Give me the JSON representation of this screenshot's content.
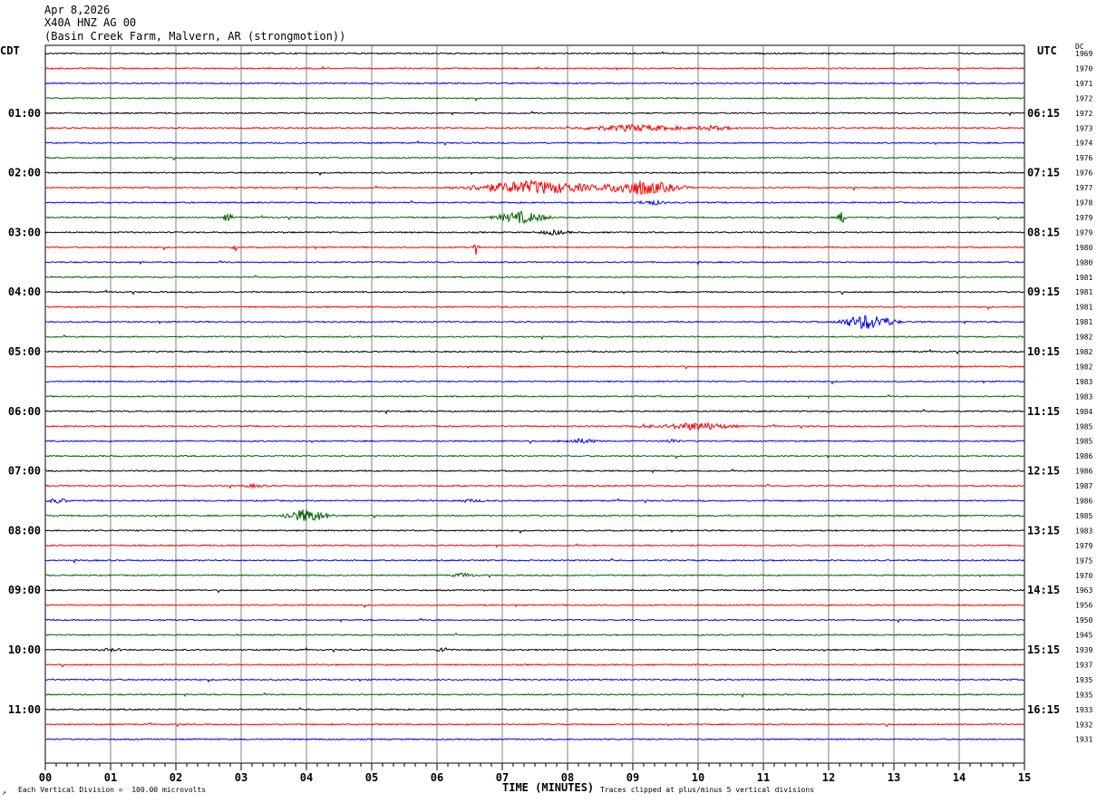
{
  "header": {
    "date": "Apr 8,2026",
    "station": "X40A HNZ AG 00",
    "location": "(Basin Creek Farm, Malvern, AR (strongmotion))"
  },
  "timezones": {
    "left": "CDT",
    "right": "UTC",
    "dc_label": "DC"
  },
  "footer": {
    "left": "Each Vertical Division =  100.00 microvolts",
    "xlabel": "TIME (MINUTES)",
    "right": "Traces clipped at plus/minus 5 vertical divisions",
    "mark": "↗"
  },
  "chart_data": {
    "type": "line",
    "x_axis": {
      "label": "TIME (MINUTES)",
      "range": [
        0,
        15
      ],
      "tick_labels": [
        "00",
        "01",
        "02",
        "03",
        "04",
        "05",
        "06",
        "07",
        "08",
        "09",
        "10",
        "11",
        "12",
        "13",
        "14",
        "15"
      ]
    },
    "colors": {
      "trace_cycle": [
        "#000000",
        "#ff0000",
        "#0000ff",
        "#006400"
      ],
      "grid": "#808080"
    },
    "hour_labels_left": [
      "01:00",
      "02:00",
      "03:00",
      "04:00",
      "05:00",
      "06:00",
      "07:00",
      "08:00",
      "09:00",
      "10:00",
      "11:00"
    ],
    "hour_labels_right": [
      "06:15",
      "07:15",
      "08:15",
      "09:15",
      "10:15",
      "11:15",
      "12:15",
      "13:15",
      "14:15",
      "15:15",
      "16:15"
    ],
    "hour_label_rows": [
      4,
      8,
      12,
      16,
      20,
      24,
      28,
      32,
      36,
      40,
      44
    ],
    "dc_offsets": [
      "1969",
      "1970",
      "1971",
      "1972",
      "1972",
      "1973",
      "1974",
      "1976",
      "1976",
      "1977",
      "1978",
      "1979",
      "1979",
      "1980",
      "1980",
      "1981",
      "1981",
      "1981",
      "1981",
      "1982",
      "1982",
      "1982",
      "1983",
      "1983",
      "1984",
      "1985",
      "1985",
      "1986",
      "1986",
      "1987",
      "1986",
      "1985",
      "1983",
      "1979",
      "1975",
      "1970",
      "1963",
      "1956",
      "1950",
      "1945",
      "1939",
      "1937",
      "1935",
      "1935",
      "1933",
      "1932",
      "1931"
    ],
    "events": [
      {
        "row": 5,
        "minute": 9.0,
        "duration": 1.3,
        "amplitude": 4
      },
      {
        "row": 5,
        "minute": 10.2,
        "duration": 0.6,
        "amplitude": 3
      },
      {
        "row": 9,
        "minute": 7.5,
        "duration": 1.5,
        "amplitude": 8
      },
      {
        "row": 9,
        "minute": 9.1,
        "duration": 0.9,
        "amplitude": 9
      },
      {
        "row": 10,
        "minute": 9.3,
        "duration": 0.4,
        "amplitude": 3
      },
      {
        "row": 11,
        "minute": 7.3,
        "duration": 0.6,
        "amplitude": 7
      },
      {
        "row": 11,
        "minute": 2.8,
        "duration": 0.1,
        "amplitude": 6
      },
      {
        "row": 11,
        "minute": 12.2,
        "duration": 0.1,
        "amplitude": 7
      },
      {
        "row": 12,
        "minute": 7.8,
        "duration": 0.4,
        "amplitude": 3
      },
      {
        "row": 13,
        "minute": 6.6,
        "duration": 0.05,
        "amplitude": 9
      },
      {
        "row": 13,
        "minute": 2.9,
        "duration": 0.05,
        "amplitude": 6
      },
      {
        "row": 18,
        "minute": 12.6,
        "duration": 0.6,
        "amplitude": 9
      },
      {
        "row": 25,
        "minute": 10.0,
        "duration": 0.8,
        "amplitude": 5
      },
      {
        "row": 25,
        "minute": 9.2,
        "duration": 0.2,
        "amplitude": 3
      },
      {
        "row": 26,
        "minute": 8.2,
        "duration": 0.5,
        "amplitude": 3
      },
      {
        "row": 26,
        "minute": 9.6,
        "duration": 0.2,
        "amplitude": 3
      },
      {
        "row": 29,
        "minute": 3.2,
        "duration": 0.4,
        "amplitude": 2
      },
      {
        "row": 30,
        "minute": 0.2,
        "duration": 0.3,
        "amplitude": 3
      },
      {
        "row": 30,
        "minute": 6.5,
        "duration": 0.5,
        "amplitude": 2
      },
      {
        "row": 31,
        "minute": 4.0,
        "duration": 0.5,
        "amplitude": 8
      },
      {
        "row": 35,
        "minute": 6.4,
        "duration": 0.3,
        "amplitude": 3
      },
      {
        "row": 40,
        "minute": 6.1,
        "duration": 0.15,
        "amplitude": 4
      },
      {
        "row": 40,
        "minute": 1.0,
        "duration": 0.4,
        "amplitude": 2
      }
    ]
  }
}
